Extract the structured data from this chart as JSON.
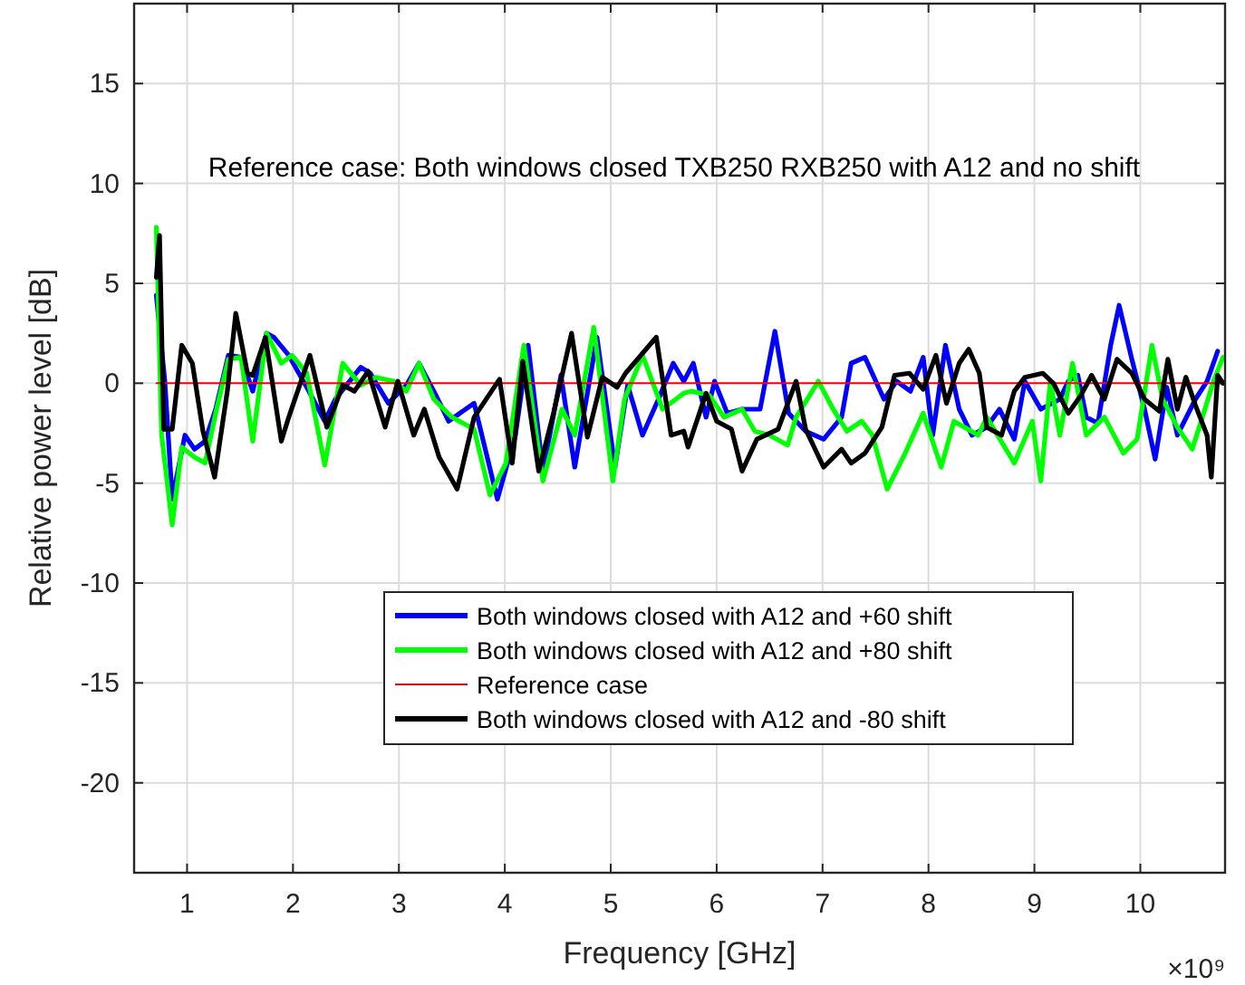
{
  "chart_data": {
    "type": "line",
    "xlabel": "Frequency [GHz]",
    "ylabel": "Relative power level [dB]",
    "xlim": [
      0.5,
      10.8
    ],
    "ylim": [
      -24.5,
      19
    ],
    "xticks": [
      1,
      2,
      3,
      4,
      5,
      6,
      7,
      8,
      9,
      10
    ],
    "yticks": [
      -20,
      -15,
      -10,
      -5,
      0,
      5,
      10,
      15
    ],
    "grid": true,
    "legend": "bottom",
    "line_style": "solid",
    "marker": "none",
    "annotations": [
      "Reference case: Both windows closed TXB250 RXB250 with A12 and no shift",
      "×10⁹"
    ],
    "series": [
      {
        "name": "Both windows closed with A12 and +60 shift",
        "color": "#0000ff",
        "x": [
          0.71,
          0.79,
          0.86,
          0.98,
          1.07,
          1.17,
          1.27,
          1.39,
          1.51,
          1.62,
          1.75,
          1.82,
          1.96,
          2.13,
          2.3,
          2.4,
          2.64,
          2.73,
          2.9,
          3.07,
          3.19,
          3.33,
          3.47,
          3.71,
          3.93,
          4.1,
          4.22,
          4.36,
          4.53,
          4.66,
          4.87,
          5.04,
          5.16,
          5.3,
          5.45,
          5.59,
          5.69,
          5.78,
          5.9,
          5.98,
          6.1,
          6.24,
          6.41,
          6.55,
          6.68,
          6.84,
          7.01,
          7.18,
          7.27,
          7.4,
          7.58,
          7.7,
          7.83,
          7.95,
          8.04,
          8.16,
          8.29,
          8.41,
          8.55,
          8.67,
          8.81,
          8.91,
          9.06,
          9.24,
          9.32,
          9.41,
          9.49,
          9.6,
          9.72,
          9.8,
          9.92,
          10.04,
          10.14,
          10.25,
          10.35,
          10.52,
          10.63,
          10.73
        ],
        "values": [
          4.4,
          0.1,
          -5.8,
          -2.6,
          -3.3,
          -2.9,
          -1.3,
          1.4,
          1.3,
          -0.4,
          2.5,
          2.3,
          1.4,
          -0.2,
          -1.9,
          -0.8,
          0.8,
          0.5,
          -1.0,
          -0.1,
          1.0,
          -0.4,
          -1.9,
          -1.0,
          -5.8,
          -2.6,
          1.9,
          -4.4,
          0.4,
          -4.2,
          2.3,
          -4.2,
          -0.1,
          -2.6,
          -0.8,
          1.0,
          0.1,
          1.0,
          -1.7,
          0.1,
          -1.5,
          -1.3,
          -1.3,
          2.6,
          -1.5,
          -2.4,
          -2.8,
          -1.7,
          1.0,
          1.3,
          -0.8,
          0.1,
          -0.4,
          1.3,
          -2.6,
          1.9,
          -1.3,
          -2.6,
          -2.2,
          -1.3,
          -2.8,
          0.1,
          -1.3,
          -0.8,
          0.1,
          0.4,
          -1.7,
          -2.0,
          1.9,
          3.9,
          1.2,
          -1.3,
          -3.8,
          -0.2,
          -2.6,
          -0.8,
          0.1,
          1.6
        ]
      },
      {
        "name": "Both windows closed with A12 and +80 shift",
        "color": "#00ff00",
        "x": [
          0.71,
          0.76,
          0.86,
          0.95,
          1.07,
          1.17,
          1.27,
          1.39,
          1.51,
          1.62,
          1.75,
          1.89,
          1.99,
          2.13,
          2.3,
          2.47,
          2.64,
          2.78,
          2.95,
          3.07,
          3.19,
          3.33,
          3.5,
          3.71,
          3.86,
          4.01,
          4.18,
          4.36,
          4.54,
          4.66,
          4.84,
          5.02,
          5.13,
          5.3,
          5.49,
          5.69,
          5.76,
          5.93,
          6.07,
          6.24,
          6.36,
          6.5,
          6.67,
          6.75,
          6.96,
          7.1,
          7.23,
          7.37,
          7.47,
          7.61,
          7.78,
          7.95,
          8.12,
          8.24,
          8.47,
          8.55,
          8.81,
          8.98,
          9.06,
          9.15,
          9.24,
          9.36,
          9.49,
          9.66,
          9.84,
          9.97,
          10.11,
          10.21,
          10.35,
          10.49,
          10.61,
          10.69,
          10.78
        ],
        "values": [
          7.8,
          -2.6,
          -7.1,
          -3.2,
          -3.7,
          -4.0,
          -1.5,
          1.2,
          1.3,
          -2.9,
          2.5,
          1.0,
          1.4,
          0.5,
          -4.1,
          1.0,
          -0.1,
          0.3,
          0.1,
          -0.4,
          1.0,
          -0.8,
          -1.7,
          -2.3,
          -5.6,
          -4.0,
          1.9,
          -4.9,
          -1.3,
          -2.6,
          2.8,
          -4.9,
          -0.8,
          1.4,
          -1.3,
          -0.5,
          -0.4,
          -0.6,
          -1.7,
          -1.3,
          -2.4,
          -2.6,
          -3.1,
          -1.7,
          0.1,
          -1.3,
          -2.4,
          -1.9,
          -2.6,
          -5.3,
          -3.5,
          -1.5,
          -4.2,
          -1.9,
          -2.6,
          -1.7,
          -4.0,
          -1.9,
          -4.9,
          0.1,
          -2.6,
          1.0,
          -2.6,
          -1.7,
          -3.5,
          -2.8,
          1.9,
          -0.8,
          -2.2,
          -3.3,
          -1.3,
          0.1,
          1.3
        ]
      },
      {
        "name": "Reference case",
        "color": "#ff0000",
        "x": [
          0.71,
          10.78
        ],
        "values": [
          0,
          0
        ]
      },
      {
        "name": "Both windows closed with A12 and -80 shift",
        "color": "#000000",
        "x": [
          0.71,
          0.74,
          0.78,
          0.86,
          0.95,
          1.05,
          1.15,
          1.26,
          1.38,
          1.46,
          1.57,
          1.62,
          1.74,
          1.89,
          1.96,
          2.16,
          2.32,
          2.47,
          2.58,
          2.71,
          2.87,
          2.99,
          3.14,
          3.24,
          3.38,
          3.55,
          3.71,
          3.95,
          4.07,
          4.17,
          4.32,
          4.46,
          4.63,
          4.78,
          4.92,
          5.06,
          5.14,
          5.43,
          5.57,
          5.69,
          5.73,
          5.9,
          6.0,
          6.14,
          6.24,
          6.38,
          6.58,
          6.75,
          6.84,
          7.01,
          7.18,
          7.27,
          7.4,
          7.56,
          7.68,
          7.82,
          7.95,
          8.07,
          8.17,
          8.29,
          8.38,
          8.48,
          8.55,
          8.69,
          8.81,
          8.91,
          9.08,
          9.18,
          9.32,
          9.44,
          9.54,
          9.66,
          9.78,
          9.92,
          10.04,
          10.18,
          10.26,
          10.35,
          10.43,
          10.52,
          10.63,
          10.67,
          10.73,
          10.78
        ],
        "values": [
          5.3,
          7.4,
          -2.3,
          -2.3,
          1.9,
          1.0,
          -2.4,
          -4.7,
          -0.4,
          3.5,
          0.5,
          0.4,
          2.3,
          -2.9,
          -1.7,
          1.4,
          -2.2,
          -0.1,
          -0.4,
          0.6,
          -2.2,
          0.1,
          -2.6,
          -1.3,
          -3.7,
          -5.3,
          -1.7,
          0.2,
          -4.0,
          1.1,
          -4.4,
          -1.5,
          2.5,
          -2.7,
          0.3,
          -0.2,
          0.5,
          2.3,
          -2.6,
          -2.4,
          -3.2,
          -0.5,
          -1.9,
          -2.3,
          -4.4,
          -2.8,
          -2.3,
          0.1,
          -2.3,
          -4.2,
          -3.3,
          -4.0,
          -3.5,
          -2.2,
          0.4,
          0.5,
          -0.3,
          1.4,
          -1.0,
          1.0,
          1.7,
          0.5,
          -2.2,
          -2.6,
          -0.4,
          0.3,
          0.5,
          0,
          -1.5,
          -0.6,
          0.4,
          -0.8,
          1.2,
          0.5,
          -0.8,
          -1.4,
          1.2,
          -1.3,
          0.3,
          -1.1,
          -2.6,
          -4.7,
          0.4,
          0
        ]
      }
    ]
  }
}
